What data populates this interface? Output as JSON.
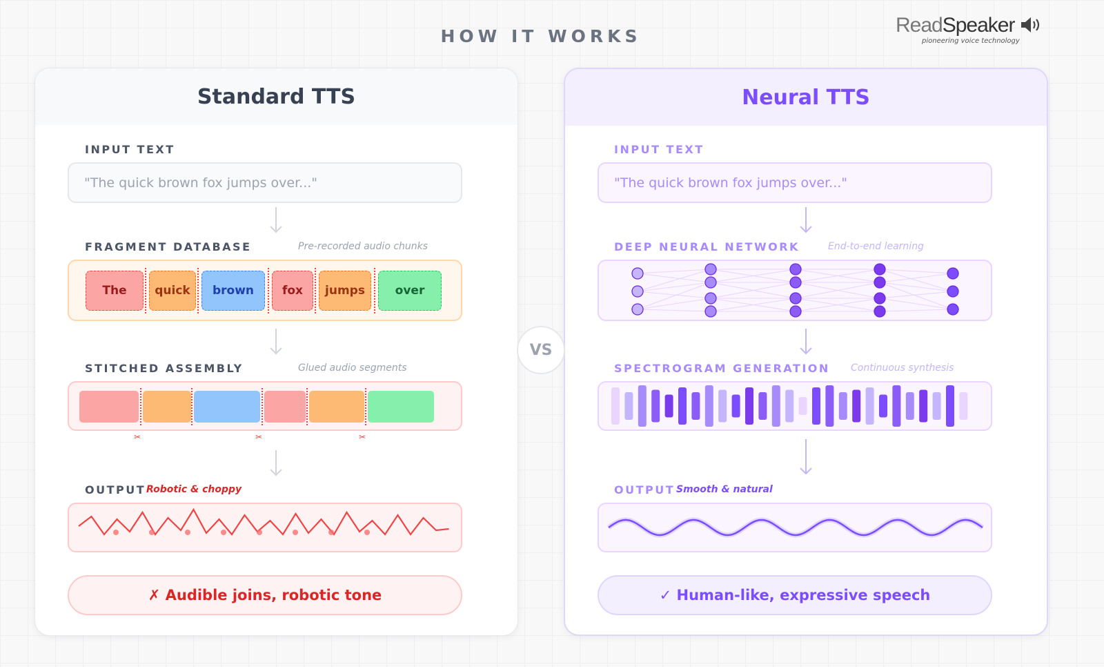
{
  "title": "HOW IT WORKS",
  "logo": {
    "read": "Read",
    "speaker": "Speaker",
    "tagline": "pioneering voice technology",
    "icon": "speaker-icon"
  },
  "vs": "VS",
  "standard": {
    "title": "Standard TTS",
    "input_label": "INPUT TEXT",
    "input_text": "\"The quick brown fox jumps over...\"",
    "fragment_label": "FRAGMENT DATABASE",
    "fragment_sub": "Pre-recorded audio chunks",
    "fragments": [
      {
        "word": "The",
        "bg": "#fca5a5",
        "border": "#ef4444",
        "color": "#991b1b"
      },
      {
        "word": "quick",
        "bg": "#fdba74",
        "border": "#f97316",
        "color": "#9a3412"
      },
      {
        "word": "brown",
        "bg": "#93c5fd",
        "border": "#3b82f6",
        "color": "#1e40af"
      },
      {
        "word": "fox",
        "bg": "#fca5a5",
        "border": "#ef4444",
        "color": "#991b1b"
      },
      {
        "word": "jumps",
        "bg": "#fdba74",
        "border": "#f97316",
        "color": "#9a3412"
      },
      {
        "word": "over",
        "bg": "#86efac",
        "border": "#22c55e",
        "color": "#166534"
      }
    ],
    "stitched_label": "STITCHED ASSEMBLY",
    "stitched_sub": "Glued audio segments",
    "cut_icon": "scissors-icon",
    "output_label": "OUTPUT",
    "output_sub": "Robotic & choppy",
    "verdict": "✗ Audible joins, robotic tone"
  },
  "neural": {
    "title": "Neural TTS",
    "input_label": "INPUT TEXT",
    "input_text": "\"The quick brown fox jumps over...\"",
    "network_label": "DEEP NEURAL NETWORK",
    "network_sub": "End-to-end learning",
    "spectrogram_label": "SPECTROGRAM GENERATION",
    "spectrogram_sub": "Continuous synthesis",
    "output_label": "OUTPUT",
    "output_sub": "Smooth & natural",
    "verdict": "✓ Human-like, expressive speech"
  },
  "colors": {
    "accent": "#7c4dff",
    "error": "#dc2626",
    "text": "#374151"
  }
}
